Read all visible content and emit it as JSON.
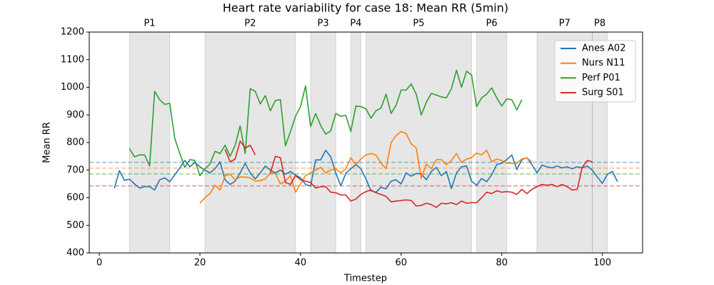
{
  "chart_data": {
    "type": "line",
    "title": "Heart rate variability for case 18: Mean RR (5min)",
    "xlabel": "Timestep",
    "ylabel": "Mean RR",
    "xlim": [
      -2,
      108
    ],
    "ylim": [
      400,
      1200
    ],
    "xticks": [
      0,
      20,
      40,
      60,
      80,
      100
    ],
    "yticks": [
      400,
      500,
      600,
      700,
      800,
      900,
      1000,
      1100,
      1200
    ],
    "legend": "upper right",
    "phases": [
      {
        "label": "P1",
        "start": 6,
        "end": 14
      },
      {
        "label": "P2",
        "start": 21,
        "end": 39
      },
      {
        "label": "P3",
        "start": 42,
        "end": 47
      },
      {
        "label": "P4",
        "start": 50,
        "end": 52
      },
      {
        "label": "P5",
        "start": 53,
        "end": 74
      },
      {
        "label": "P6",
        "start": 75,
        "end": 81
      },
      {
        "label": "P7",
        "start": 87,
        "end": 98
      },
      {
        "label": "P8",
        "start": 98,
        "end": 101
      }
    ],
    "x": [
      3,
      4,
      5,
      6,
      7,
      8,
      9,
      10,
      11,
      12,
      13,
      14,
      15,
      16,
      17,
      18,
      19,
      20,
      21,
      22,
      23,
      24,
      25,
      26,
      27,
      28,
      29,
      30,
      31,
      32,
      33,
      34,
      35,
      36,
      37,
      38,
      39,
      40,
      41,
      42,
      43,
      44,
      45,
      46,
      47,
      48,
      49,
      50,
      51,
      52,
      53,
      54,
      55,
      56,
      57,
      58,
      59,
      60,
      61,
      62,
      63,
      64,
      65,
      66,
      67,
      68,
      69,
      70,
      71,
      72,
      73,
      74,
      75,
      76,
      77,
      78,
      79,
      80,
      81,
      82,
      83,
      84,
      85,
      86,
      87,
      88,
      89,
      90,
      91,
      92,
      93,
      94,
      95,
      96,
      97,
      98,
      99,
      100,
      101,
      102,
      103
    ],
    "series": [
      {
        "name": "Anes A02",
        "color": "#1f77b4",
        "baseline": 728,
        "values": [
          635,
          698,
          663,
          667,
          650,
          635,
          640,
          640,
          628,
          665,
          672,
          658,
          683,
          708,
          735,
          712,
          728,
          712,
          700,
          690,
          705,
          730,
          665,
          648,
          660,
          690,
          725,
          690,
          668,
          690,
          715,
          700,
          690,
          700,
          685,
          695,
          682,
          672,
          648,
          642,
          737,
          737,
          772,
          748,
          690,
          643,
          688,
          705,
          720,
          705,
          668,
          625,
          620,
          638,
          632,
          660,
          665,
          650,
          690,
          678,
          688,
          687,
          665,
          695,
          710,
          680,
          695,
          633,
          690,
          712,
          715,
          660,
          645,
          670,
          658,
          683,
          720,
          725,
          738,
          755,
          702,
          738,
          745,
          720,
          690,
          718,
          712,
          708,
          715,
          708,
          712,
          705,
          712,
          708,
          715,
          700,
          675,
          652,
          685,
          695,
          658
        ]
      },
      {
        "name": "Nurs N11",
        "color": "#ff7f0e",
        "baseline": 707,
        "values": [
          null,
          null,
          null,
          null,
          null,
          null,
          null,
          null,
          null,
          null,
          null,
          null,
          null,
          null,
          null,
          null,
          null,
          580,
          600,
          615,
          645,
          628,
          680,
          685,
          665,
          675,
          675,
          672,
          660,
          662,
          668,
          690,
          688,
          650,
          660,
          680,
          620,
          650,
          680,
          690,
          700,
          710,
          690,
          700,
          705,
          690,
          705,
          745,
          720,
          740,
          755,
          760,
          755,
          725,
          705,
          800,
          825,
          840,
          832,
          795,
          780,
          670,
          722,
          705,
          738,
          738,
          720,
          735,
          760,
          728,
          740,
          745,
          762,
          755,
          772,
          730,
          740,
          735,
          725,
          725,
          725,
          740,
          745,
          728,
          null,
          null,
          null,
          null,
          null,
          null,
          null,
          null,
          null,
          null,
          null,
          null,
          null,
          null,
          null,
          null,
          null
        ]
      },
      {
        "name": "Perf P01",
        "color": "#2ca02c",
        "baseline": 686,
        "values": [
          null,
          null,
          null,
          778,
          748,
          755,
          755,
          715,
          985,
          955,
          938,
          942,
          815,
          760,
          710,
          738,
          735,
          680,
          705,
          722,
          768,
          760,
          790,
          750,
          790,
          860,
          760,
          995,
          985,
          940,
          970,
          915,
          952,
          955,
          788,
          840,
          895,
          930,
          1005,
          858,
          905,
          862,
          830,
          842,
          905,
          895,
          898,
          840,
          932,
          930,
          922,
          888,
          915,
          925,
          975,
          905,
          935,
          990,
          990,
          1012,
          975,
          900,
          945,
          978,
          972,
          965,
          962,
          995,
          1062,
          1000,
          1058,
          1045,
          930,
          962,
          975,
          998,
          962,
          932,
          958,
          955,
          918,
          955,
          null,
          null,
          null,
          null,
          null,
          null,
          null,
          null,
          null,
          null,
          null,
          null,
          null,
          null,
          null,
          null,
          null,
          null,
          null
        ]
      },
      {
        "name": "Surg S01",
        "color": "#d62728",
        "baseline": 643,
        "values": [
          null,
          null,
          null,
          null,
          null,
          null,
          null,
          null,
          null,
          null,
          null,
          null,
          null,
          null,
          null,
          null,
          null,
          null,
          null,
          null,
          null,
          null,
          775,
          730,
          740,
          805,
          780,
          790,
          755,
          null,
          null,
          690,
          750,
          745,
          655,
          648,
          680,
          665,
          660,
          655,
          635,
          640,
          640,
          620,
          618,
          610,
          610,
          588,
          595,
          612,
          622,
          628,
          618,
          612,
          605,
          585,
          588,
          590,
          592,
          590,
          570,
          572,
          580,
          575,
          565,
          580,
          578,
          582,
          575,
          588,
          580,
          582,
          582,
          600,
          620,
          615,
          625,
          620,
          622,
          620,
          612,
          630,
          615,
          630,
          640,
          648,
          645,
          648,
          640,
          648,
          640,
          628,
          630,
          710,
          735,
          730,
          null,
          null,
          null,
          null,
          null
        ]
      }
    ]
  }
}
